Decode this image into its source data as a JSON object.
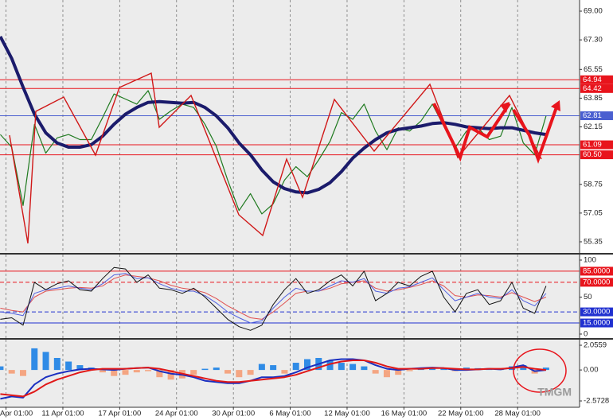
{
  "chart_data": [
    {
      "type": "line",
      "x": [
        -0.1,
        0.1,
        0.3,
        0.5,
        0.7,
        0.9,
        1.1,
        1.3,
        1.5,
        1.7,
        1.9,
        2.1,
        2.3,
        2.5,
        2.7,
        2.9,
        3.1,
        3.3,
        3.5,
        3.7,
        3.9,
        4.1,
        4.3,
        4.5,
        4.7,
        4.9,
        5.1,
        5.3,
        5.5,
        5.7,
        5.9,
        6.1,
        6.3,
        6.5,
        6.7,
        6.9,
        7.1,
        7.3,
        7.5,
        7.7,
        7.9,
        8.1,
        8.3,
        8.5,
        8.7,
        8.9,
        9.1,
        9.3,
        9.5
      ],
      "series": [
        {
          "color": "#1f7a1f",
          "width": 1.2,
          "values": [
            61.7,
            60.95,
            57.5,
            62.3,
            60.6,
            61.5,
            61.7,
            61.4,
            61.4,
            62.7,
            64.1,
            63.8,
            63.5,
            64.3,
            62.6,
            63.1,
            63.5,
            63.3,
            62.3,
            61.0,
            59.0,
            57.2,
            58.2,
            57.0,
            57.6,
            59.0,
            59.8,
            59.2,
            60.2,
            61.3,
            63.0,
            62.6,
            63.5,
            61.9,
            60.8,
            62.1,
            61.9,
            62.5,
            63.5,
            62.2,
            60.9,
            61.9,
            62.1,
            61.4,
            61.6,
            63.3,
            61.2,
            60.5,
            62.8
          ]
        },
        {
          "color": "#1b1b6b",
          "width": 4,
          "values": [
            67.5,
            66.2,
            64.5,
            62.9,
            61.8,
            61.2,
            60.95,
            60.95,
            61.1,
            61.6,
            62.3,
            62.9,
            63.3,
            63.6,
            63.65,
            63.6,
            63.55,
            63.6,
            63.3,
            62.8,
            62.1,
            61.2,
            60.5,
            59.6,
            58.9,
            58.5,
            58.3,
            58.25,
            58.45,
            58.85,
            59.5,
            60.3,
            60.9,
            61.4,
            61.8,
            62.0,
            62.1,
            62.2,
            62.35,
            62.4,
            62.3,
            62.15,
            62.1,
            62.05,
            62.1,
            62.1,
            61.95,
            61.8,
            61.7
          ]
        }
      ],
      "levels": [
        {
          "value": 64.94,
          "label": "64.94",
          "color": "#e8141c"
        },
        {
          "value": 64.42,
          "label": "64.42",
          "color": "#e8141c"
        },
        {
          "value": 62.81,
          "label": "62.81",
          "color": "#4a5fd0"
        },
        {
          "value": 61.09,
          "label": "61.09",
          "color": "#e8141c"
        },
        {
          "value": 60.5,
          "label": "60.50",
          "color": "#e8141c"
        }
      ],
      "xlim": [
        -0.106,
        10.09
      ],
      "ylim": [
        54.69,
        69.66
      ],
      "yticks": [
        {
          "value": 69,
          "label": "69.00"
        },
        {
          "value": 67.3,
          "label": "67.30"
        },
        65.55,
        63.85,
        62.15,
        58.75,
        57.05,
        55.35
      ]
    },
    {
      "type": "line",
      "x": [
        -0.1,
        0.1,
        0.3,
        0.5,
        0.7,
        0.9,
        1.1,
        1.3,
        1.5,
        1.7,
        1.9,
        2.1,
        2.3,
        2.5,
        2.7,
        2.9,
        3.1,
        3.3,
        3.5,
        3.7,
        3.9,
        4.1,
        4.3,
        4.5,
        4.7,
        4.9,
        5.1,
        5.3,
        5.5,
        5.7,
        5.9,
        6.1,
        6.3,
        6.5,
        6.7,
        6.9,
        7.1,
        7.3,
        7.5,
        7.7,
        7.9,
        8.1,
        8.3,
        8.5,
        8.7,
        8.9,
        9.1,
        9.3,
        9.5
      ],
      "series": [
        {
          "color": "#e05050",
          "width": 1,
          "values": [
            35,
            32,
            30,
            50,
            58,
            60,
            62,
            63,
            62,
            65,
            75,
            80,
            78,
            76,
            72,
            66,
            62,
            60,
            56,
            48,
            38,
            30,
            22,
            20,
            30,
            42,
            55,
            58,
            58,
            62,
            68,
            70,
            72,
            62,
            58,
            60,
            63,
            67,
            72,
            65,
            52,
            50,
            53,
            52,
            50,
            56,
            50,
            44,
            50
          ]
        },
        {
          "color": "#5060e0",
          "width": 1,
          "values": [
            30,
            28,
            25,
            55,
            60,
            62,
            65,
            62,
            60,
            68,
            80,
            82,
            75,
            76,
            68,
            62,
            58,
            58,
            52,
            42,
            30,
            22,
            15,
            18,
            35,
            50,
            62,
            58,
            58,
            65,
            72,
            70,
            75,
            58,
            55,
            62,
            64,
            70,
            76,
            60,
            45,
            50,
            55,
            50,
            48,
            60,
            45,
            38,
            55
          ]
        },
        {
          "color": "#111111",
          "width": 1,
          "values": [
            20,
            22,
            12,
            70,
            60,
            68,
            72,
            60,
            58,
            75,
            90,
            88,
            70,
            80,
            62,
            60,
            55,
            62,
            50,
            35,
            20,
            10,
            5,
            12,
            40,
            60,
            75,
            55,
            60,
            72,
            80,
            65,
            85,
            45,
            55,
            70,
            65,
            78,
            85,
            50,
            30,
            55,
            60,
            40,
            45,
            70,
            35,
            28,
            65
          ]
        }
      ],
      "levels": [
        {
          "value": 85,
          "label": "85.0000",
          "color": "#e8141c"
        },
        {
          "value": 70,
          "label": "70.0000",
          "color": "#e8141c",
          "dash": true
        },
        {
          "value": 30,
          "label": "30.0000",
          "color": "#2030d0",
          "dash": true
        },
        {
          "value": 15,
          "label": "15.0000",
          "color": "#2030d0"
        }
      ],
      "xlim": [
        -0.106,
        10.09
      ],
      "ylim": [
        -5.4,
        107.5
      ],
      "yticks": [
        100,
        50,
        0
      ]
    },
    {
      "type": "bar",
      "x": [
        -0.1,
        0.1,
        0.3,
        0.5,
        0.7,
        0.9,
        1.1,
        1.3,
        1.5,
        1.7,
        1.9,
        2.1,
        2.3,
        2.5,
        2.7,
        2.9,
        3.1,
        3.3,
        3.5,
        3.7,
        3.9,
        4.1,
        4.3,
        4.5,
        4.7,
        4.9,
        5.1,
        5.3,
        5.5,
        5.7,
        5.9,
        6.1,
        6.3,
        6.5,
        6.7,
        6.9,
        7.1,
        7.3,
        7.5,
        7.7,
        7.9,
        8.1,
        8.3,
        8.5,
        8.7,
        8.9,
        9.1,
        9.3,
        9.5
      ],
      "series": [
        {
          "style": "bar",
          "color": "#2f8be6",
          "negative_color": "#f4a582",
          "values": [
            0.3,
            -0.3,
            -0.5,
            1.8,
            1.5,
            1.0,
            0.7,
            0.4,
            0.2,
            -0.2,
            -0.5,
            -0.4,
            -0.2,
            -0.1,
            -0.6,
            -0.8,
            -0.7,
            -0.4,
            0.1,
            0.2,
            -0.3,
            -0.6,
            -0.4,
            0.5,
            0.4,
            -0.3,
            0.6,
            0.9,
            1.0,
            0.8,
            0.6,
            0.5,
            0.3,
            -0.3,
            -0.6,
            -0.4,
            -0.1,
            0.1,
            0.2,
            0.1,
            -0.1,
            0.2,
            0.15,
            0.1,
            0.1,
            0.3,
            0.4,
            -0.3,
            0.2
          ]
        },
        {
          "style": "line",
          "color": "#1a2fc0",
          "width": 2,
          "values": [
            -2.4,
            -2.2,
            -2.3,
            -1.2,
            -0.6,
            -0.3,
            -0.1,
            0.05,
            0.1,
            0.05,
            0.0,
            0.1,
            0.15,
            0.2,
            -0.1,
            -0.3,
            -0.4,
            -0.6,
            -0.9,
            -1.0,
            -1.1,
            -1.1,
            -0.9,
            -0.6,
            -0.6,
            -0.5,
            -0.2,
            0.2,
            0.5,
            0.8,
            0.9,
            0.9,
            0.8,
            0.4,
            0.1,
            0.0,
            0.1,
            0.15,
            0.2,
            0.15,
            0.0,
            0.0,
            0.05,
            0.1,
            0.05,
            0.2,
            0.4,
            -0.1,
            0.0
          ]
        },
        {
          "style": "line",
          "color": "#e01818",
          "width": 2,
          "values": [
            -2.0,
            -2.1,
            -2.2,
            -1.8,
            -1.2,
            -0.8,
            -0.5,
            -0.2,
            0.0,
            0.1,
            0.1,
            0.1,
            0.15,
            0.2,
            0.1,
            -0.1,
            -0.3,
            -0.5,
            -0.7,
            -0.9,
            -1.0,
            -1.0,
            -0.9,
            -0.8,
            -0.7,
            -0.6,
            -0.4,
            -0.1,
            0.2,
            0.5,
            0.7,
            0.8,
            0.8,
            0.6,
            0.3,
            0.1,
            0.1,
            0.1,
            0.15,
            0.15,
            0.1,
            0.05,
            0.05,
            0.1,
            0.1,
            0.15,
            0.25,
            0.1,
            0.0
          ]
        }
      ],
      "xlim": [
        -0.106,
        10.09
      ],
      "ylim": [
        -3.1,
        2.52
      ],
      "yticks": [
        2.0559,
        {
          "value": 0,
          "label": "0.00"
        },
        -2.5728
      ],
      "xticks": [
        {
          "value": 0,
          "label": "Apr 01:00"
        },
        {
          "value": 1,
          "label": "11 Apr 01:00"
        },
        {
          "value": 2,
          "label": "17 Apr 01:00"
        },
        {
          "value": 3,
          "label": "24 Apr 01:00"
        },
        {
          "value": 4,
          "label": "30 Apr 01:00"
        },
        {
          "value": 5,
          "label": "6 May 01:00"
        },
        {
          "value": 6,
          "label": "12 May 01:00"
        },
        {
          "value": 7,
          "label": "16 May 01:00"
        },
        {
          "value": 8,
          "label": "22 May 01:00"
        },
        {
          "value": 9,
          "label": "28 May 01:00"
        }
      ]
    }
  ],
  "watermark": "TMGM"
}
